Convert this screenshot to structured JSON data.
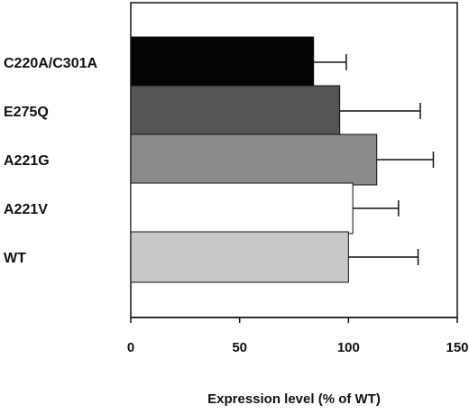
{
  "chart_data": {
    "type": "bar",
    "orientation": "horizontal",
    "categories": [
      "C220A/C301A",
      "E275Q",
      "A221G",
      "A221V",
      "WT"
    ],
    "values": [
      84,
      96,
      113,
      102,
      100
    ],
    "errors": [
      15,
      37,
      26,
      21,
      32
    ],
    "bar_colors": [
      "#050505",
      "#555555",
      "#8c8c8c",
      "#ffffff",
      "#c8c8c8"
    ],
    "xlabel": "Expression level (% of WT)",
    "xlim": [
      0,
      150
    ],
    "xticks": [
      0,
      50,
      100,
      150
    ],
    "grid": false,
    "legend": "none"
  }
}
